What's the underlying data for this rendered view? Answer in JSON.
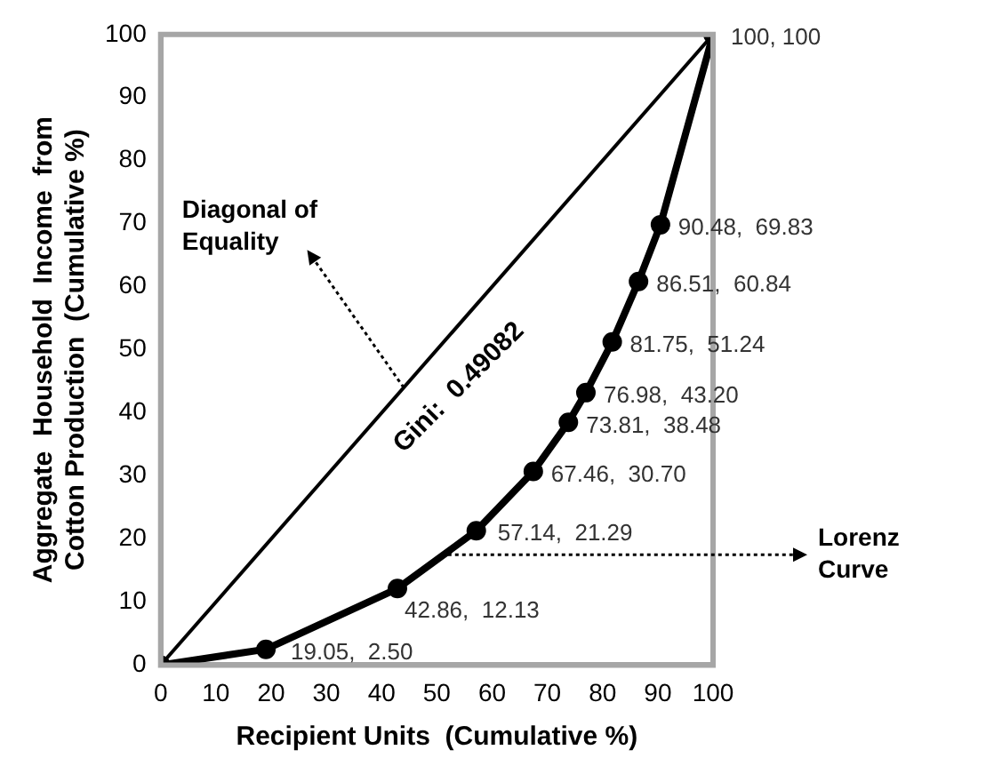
{
  "chart_data": {
    "type": "line",
    "xlabel": "Recipient Units  (Cumulative %)",
    "ylabel": "Aggregate  Household  Income  from\nCotton Production  (Cumulative %)",
    "xlim": [
      0,
      100
    ],
    "xticks": [
      0,
      10,
      20,
      30,
      40,
      50,
      60,
      70,
      80,
      90,
      100
    ],
    "ylim": [
      0,
      100
    ],
    "yticks": [
      0,
      10,
      20,
      30,
      40,
      50,
      60,
      70,
      80,
      90,
      100
    ],
    "grid": false,
    "legend": false,
    "series": [
      {
        "color": "#000000",
        "marker": "circle",
        "x": [
          0,
          19.05,
          42.86,
          57.14,
          67.46,
          73.81,
          76.98,
          81.75,
          86.51,
          90.48,
          100
        ],
        "values": [
          0,
          2.5,
          12.13,
          21.29,
          30.7,
          38.48,
          43.2,
          51.24,
          60.84,
          69.83,
          100
        ],
        "value_labels": [
          null,
          "19.05,  2.50",
          "42.86,  12.13",
          "57.14,  21.29",
          "67.46,  30.70",
          "73.81,  38.48",
          "76.98,  43.20",
          "81.75,  51.24",
          "86.51,  60.84",
          "90.48,  69.83",
          "100, 100"
        ]
      },
      {
        "color": "#000000",
        "marker": "none",
        "x": [
          0,
          100
        ],
        "values": [
          0,
          100
        ]
      }
    ],
    "annotations": [
      "Gini:  0.49082",
      "Diagonal of\nEquality",
      {
        "text": "Lorenz\nCurve",
        "x": 52,
        "y": 17.5
      }
    ]
  }
}
